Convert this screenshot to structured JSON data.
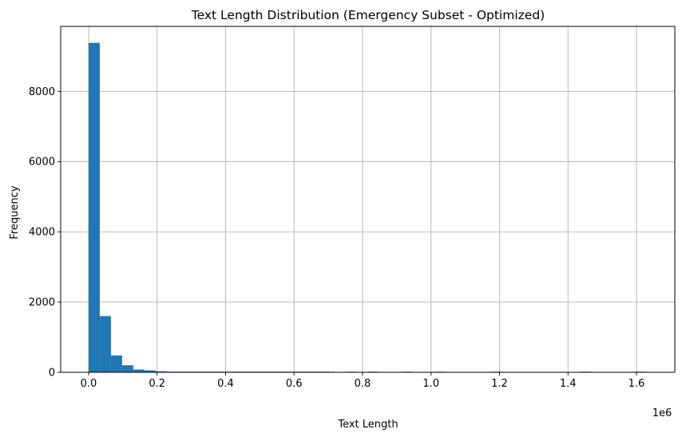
{
  "chart_data": {
    "type": "bar",
    "title": "Text Length Distribution (Emergency Subset - Optimized)",
    "xlabel": "Text Length",
    "ylabel": "Frequency",
    "x_scale_label": "1e6",
    "xlim": [
      -0.0815,
      1.712
    ],
    "ylim": [
      0,
      9850
    ],
    "grid": true,
    "bar_color": "#1f77b4",
    "bin_width": 0.0326,
    "bins": [
      {
        "start": 0.0,
        "count": 9380
      },
      {
        "start": 0.0326,
        "count": 1600
      },
      {
        "start": 0.0652,
        "count": 480
      },
      {
        "start": 0.0978,
        "count": 200
      },
      {
        "start": 0.1304,
        "count": 80
      },
      {
        "start": 0.163,
        "count": 55
      },
      {
        "start": 0.1956,
        "count": 30
      },
      {
        "start": 0.2282,
        "count": 18
      },
      {
        "start": 0.2608,
        "count": 14
      },
      {
        "start": 0.2934,
        "count": 10
      },
      {
        "start": 0.326,
        "count": 8
      },
      {
        "start": 0.3586,
        "count": 6
      },
      {
        "start": 0.3912,
        "count": 5
      },
      {
        "start": 0.4238,
        "count": 3
      },
      {
        "start": 0.4564,
        "count": 2
      },
      {
        "start": 0.489,
        "count": 1
      },
      {
        "start": 0.5216,
        "count": 1
      },
      {
        "start": 0.5542,
        "count": 1
      },
      {
        "start": 0.5868,
        "count": 1
      },
      {
        "start": 0.6194,
        "count": 1
      },
      {
        "start": 0.652,
        "count": 1
      },
      {
        "start": 0.6846,
        "count": 1
      },
      {
        "start": 0.7172,
        "count": 0
      },
      {
        "start": 0.7498,
        "count": 1
      },
      {
        "start": 0.7824,
        "count": 0
      },
      {
        "start": 0.815,
        "count": 1
      },
      {
        "start": 0.8476,
        "count": 0
      },
      {
        "start": 0.8802,
        "count": 0
      },
      {
        "start": 0.9128,
        "count": 1
      },
      {
        "start": 0.9454,
        "count": 0
      },
      {
        "start": 0.978,
        "count": 0
      },
      {
        "start": 1.0106,
        "count": 1
      },
      {
        "start": 1.0432,
        "count": 0
      },
      {
        "start": 1.0758,
        "count": 0
      },
      {
        "start": 1.1084,
        "count": 0
      },
      {
        "start": 1.141,
        "count": 0
      },
      {
        "start": 1.1736,
        "count": 1
      },
      {
        "start": 1.2062,
        "count": 0
      },
      {
        "start": 1.2388,
        "count": 0
      },
      {
        "start": 1.2714,
        "count": 0
      },
      {
        "start": 1.304,
        "count": 0
      },
      {
        "start": 1.3366,
        "count": 0
      },
      {
        "start": 1.3692,
        "count": 0
      },
      {
        "start": 1.4018,
        "count": 0
      },
      {
        "start": 1.4344,
        "count": 1
      },
      {
        "start": 1.467,
        "count": 0
      },
      {
        "start": 1.4996,
        "count": 0
      },
      {
        "start": 1.5322,
        "count": 0
      },
      {
        "start": 1.5648,
        "count": 0
      },
      {
        "start": 1.5974,
        "count": 1
      }
    ],
    "x_ticks": [
      {
        "value": 0.0,
        "label": "0.0"
      },
      {
        "value": 0.2,
        "label": "0.2"
      },
      {
        "value": 0.4,
        "label": "0.4"
      },
      {
        "value": 0.6,
        "label": "0.6"
      },
      {
        "value": 0.8,
        "label": "0.8"
      },
      {
        "value": 1.0,
        "label": "1.0"
      },
      {
        "value": 1.2,
        "label": "1.2"
      },
      {
        "value": 1.4,
        "label": "1.4"
      },
      {
        "value": 1.6,
        "label": "1.6"
      }
    ],
    "y_ticks": [
      {
        "value": 0,
        "label": "0"
      },
      {
        "value": 2000,
        "label": "2000"
      },
      {
        "value": 4000,
        "label": "4000"
      },
      {
        "value": 6000,
        "label": "6000"
      },
      {
        "value": 8000,
        "label": "8000"
      }
    ]
  }
}
